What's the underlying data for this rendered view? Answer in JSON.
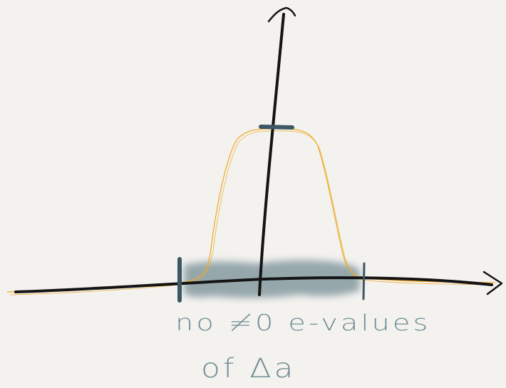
{
  "colors": {
    "background": "#f4f2ef",
    "axis": "#141414",
    "curve": "#f0ab2c",
    "shading": "#4a6b74",
    "markers": "#3d5864",
    "caption": "#6f8e94"
  },
  "caption": {
    "line1": "no ≠0 e-values",
    "line2": "of Δa"
  }
}
